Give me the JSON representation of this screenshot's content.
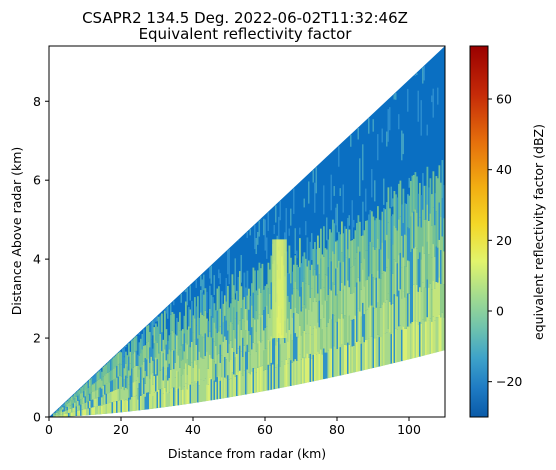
{
  "chart_data": {
    "type": "heatmap",
    "title": "CSAPR2 134.5 Deg. 2022-06-02T11:32:46Z",
    "subtitle": "Equivalent reflectivity factor",
    "xlabel": "Distance from radar (km)",
    "ylabel": "Distance Above radar  (km)",
    "xlim": [
      0,
      110
    ],
    "ylim": [
      0,
      9.4
    ],
    "x_ticks": [
      "0",
      "20",
      "40",
      "60",
      "80",
      "100"
    ],
    "y_ticks": [
      "0",
      "2",
      "4",
      "6",
      "8"
    ],
    "sweep": {
      "elevation_top_km_at_110": 9.4,
      "elevation_bottom_km_at_110": 1.7,
      "convective_cell_x_km": [
        62,
        66
      ],
      "convective_cell_y_km": [
        2.0,
        4.5
      ]
    },
    "colorbar": {
      "label": "equivalent reflectivity factor (dBZ)",
      "range": [
        -30,
        75
      ],
      "ticks": [
        "60",
        "40",
        "20",
        "0",
        "−20"
      ],
      "colormap": [
        "#0a5aa8",
        "#2d8fd0",
        "#4bb0c8",
        "#7cc9a8",
        "#b9e38a",
        "#e8f56a",
        "#f5d21e",
        "#f29a10",
        "#e0500a",
        "#b01006",
        "#8c0000"
      ]
    },
    "grid": false
  }
}
